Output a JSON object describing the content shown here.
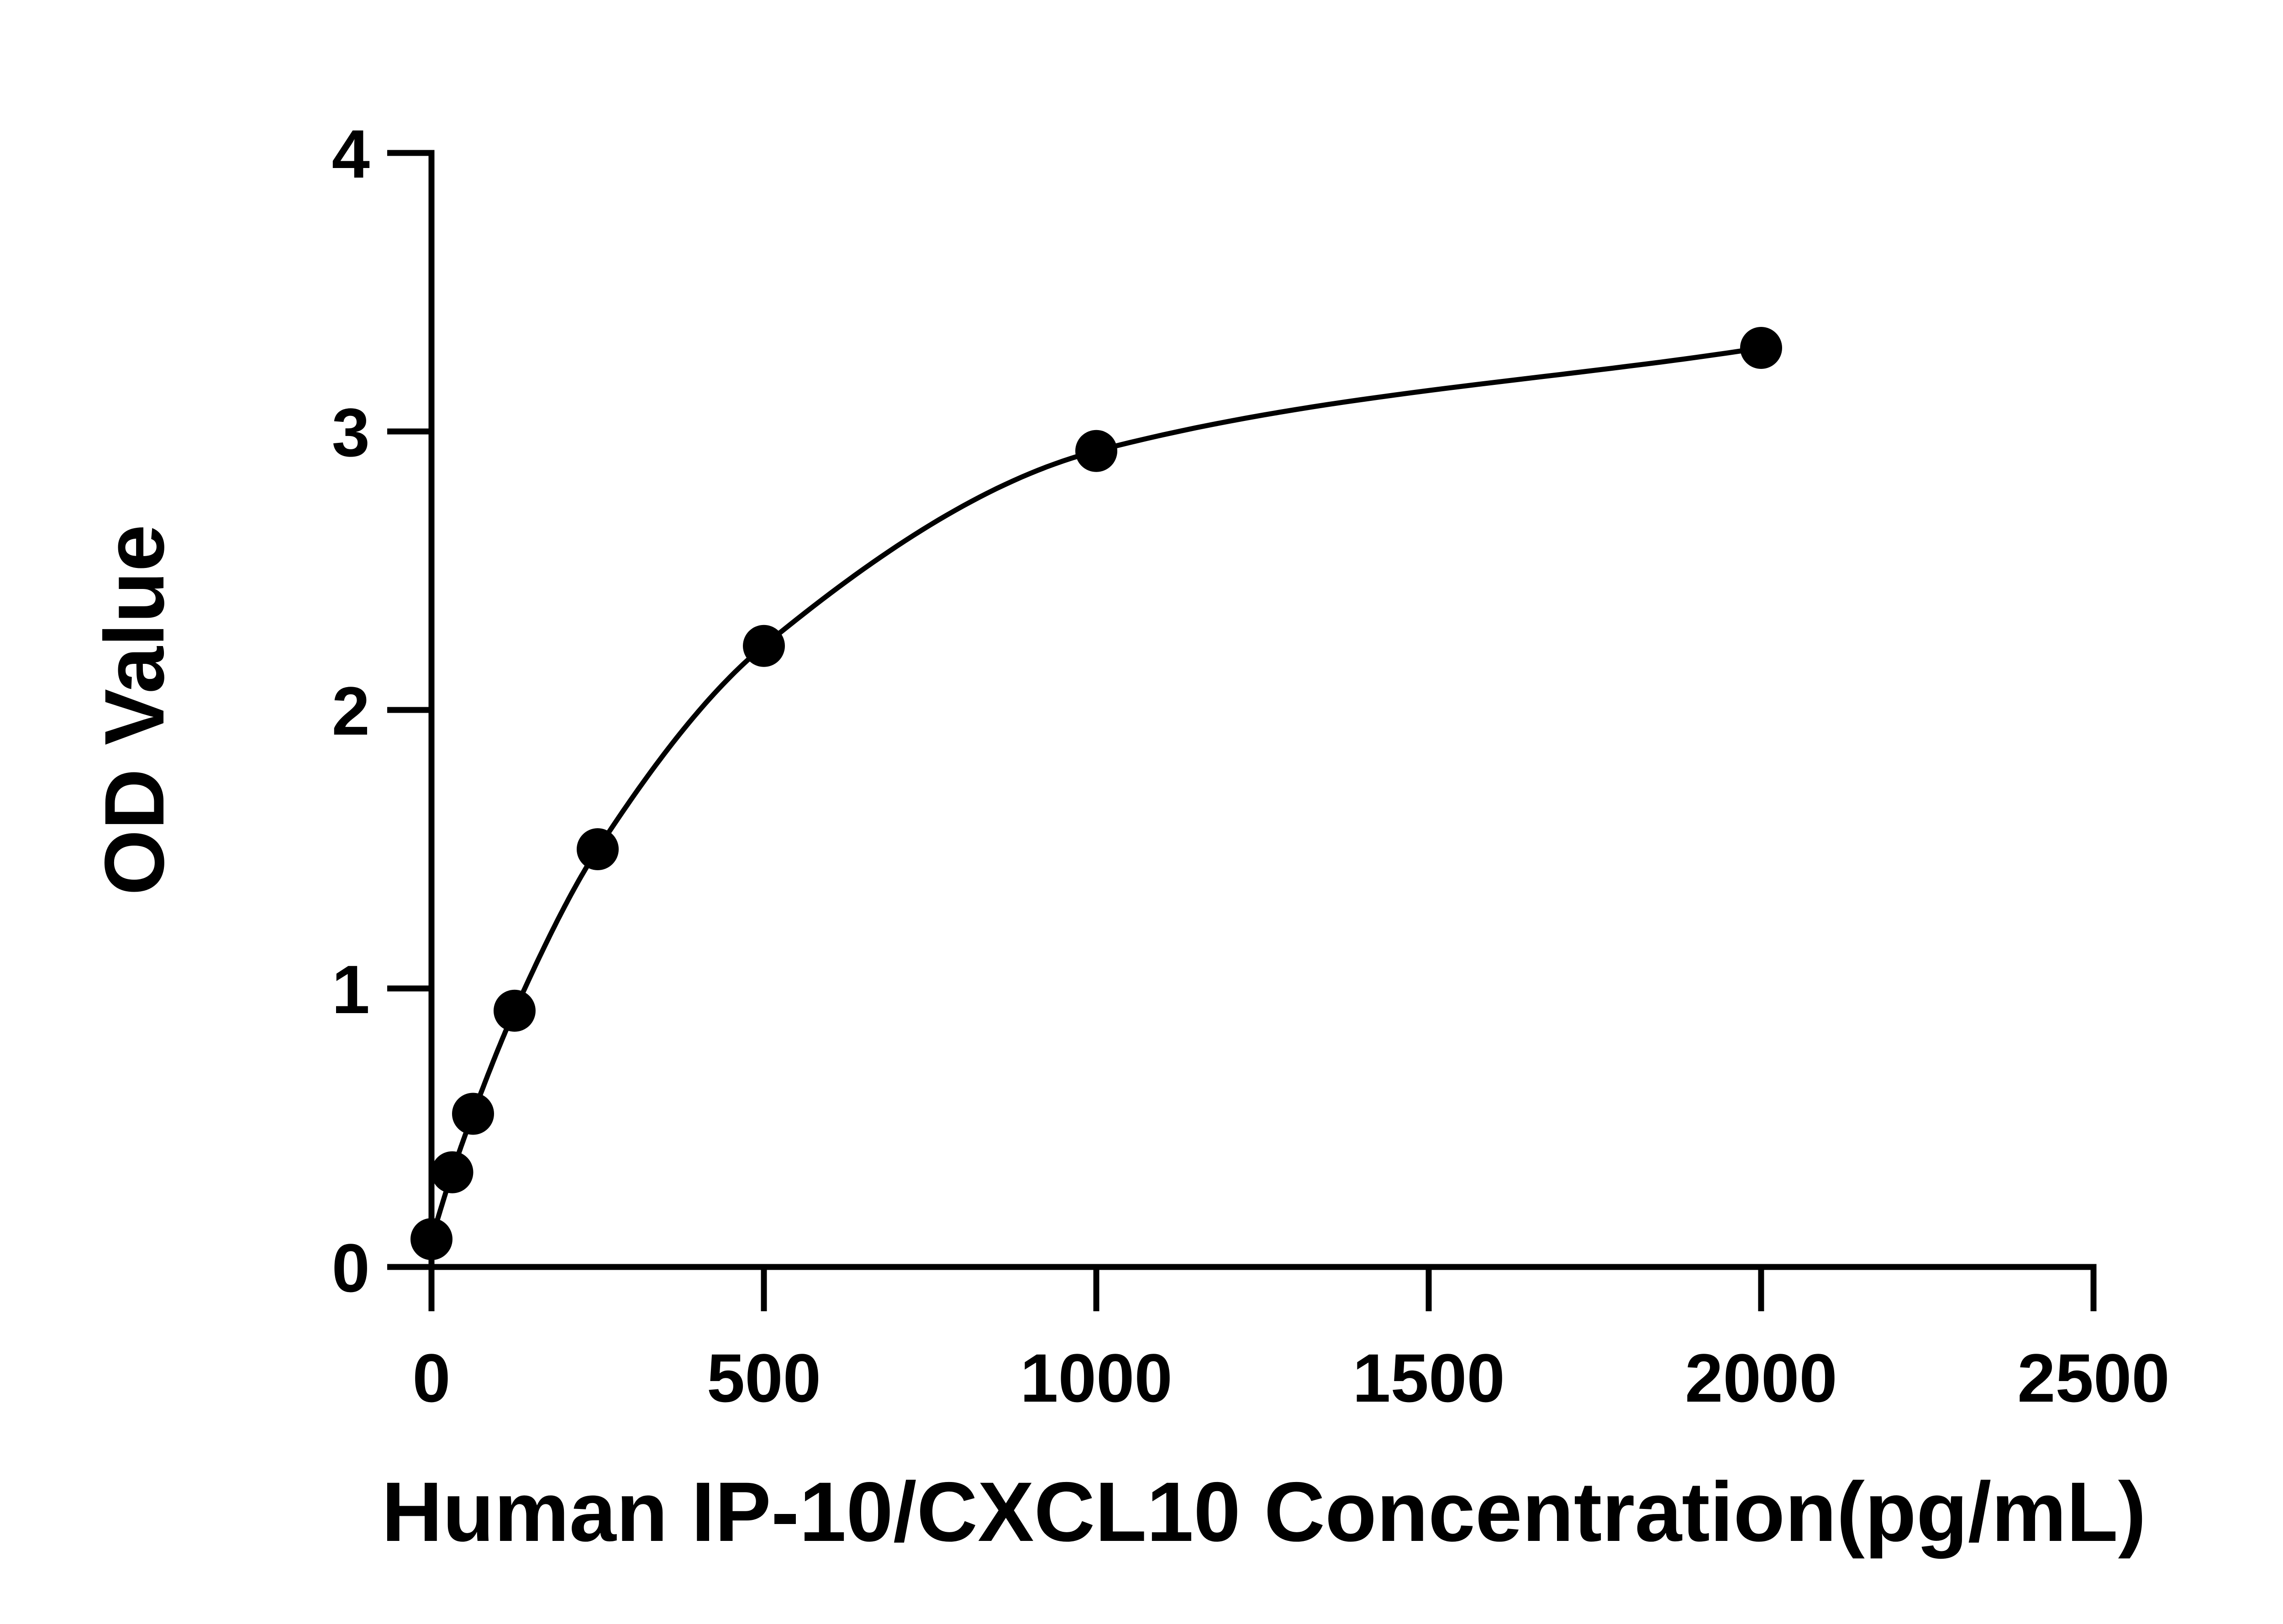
{
  "chart_data": {
    "type": "scatter",
    "title": "",
    "xlabel": "Human IP-10/CXCL10 Concentration(pg/mL)",
    "ylabel": "OD Value",
    "xlim": [
      0,
      2500
    ],
    "ylim": [
      0,
      4
    ],
    "x_ticks": [
      0,
      500,
      1000,
      1500,
      2000,
      2500
    ],
    "y_ticks": [
      0,
      1,
      2,
      3,
      4
    ],
    "grid": false,
    "legend": "none",
    "color": "#000000",
    "series": [
      {
        "x": [
          0,
          31.25,
          62.5,
          125,
          250,
          500,
          1000,
          2000
        ],
        "y": [
          0.1,
          0.34,
          0.55,
          0.92,
          1.5,
          2.23,
          2.93,
          3.3
        ]
      }
    ],
    "fit_curve": {
      "type": "smooth-fit",
      "x": [
        0,
        31.25,
        62.5,
        125,
        250,
        500,
        1000,
        2000
      ],
      "y": [
        0.1,
        0.34,
        0.55,
        0.92,
        1.5,
        2.23,
        2.93,
        3.3
      ]
    }
  }
}
